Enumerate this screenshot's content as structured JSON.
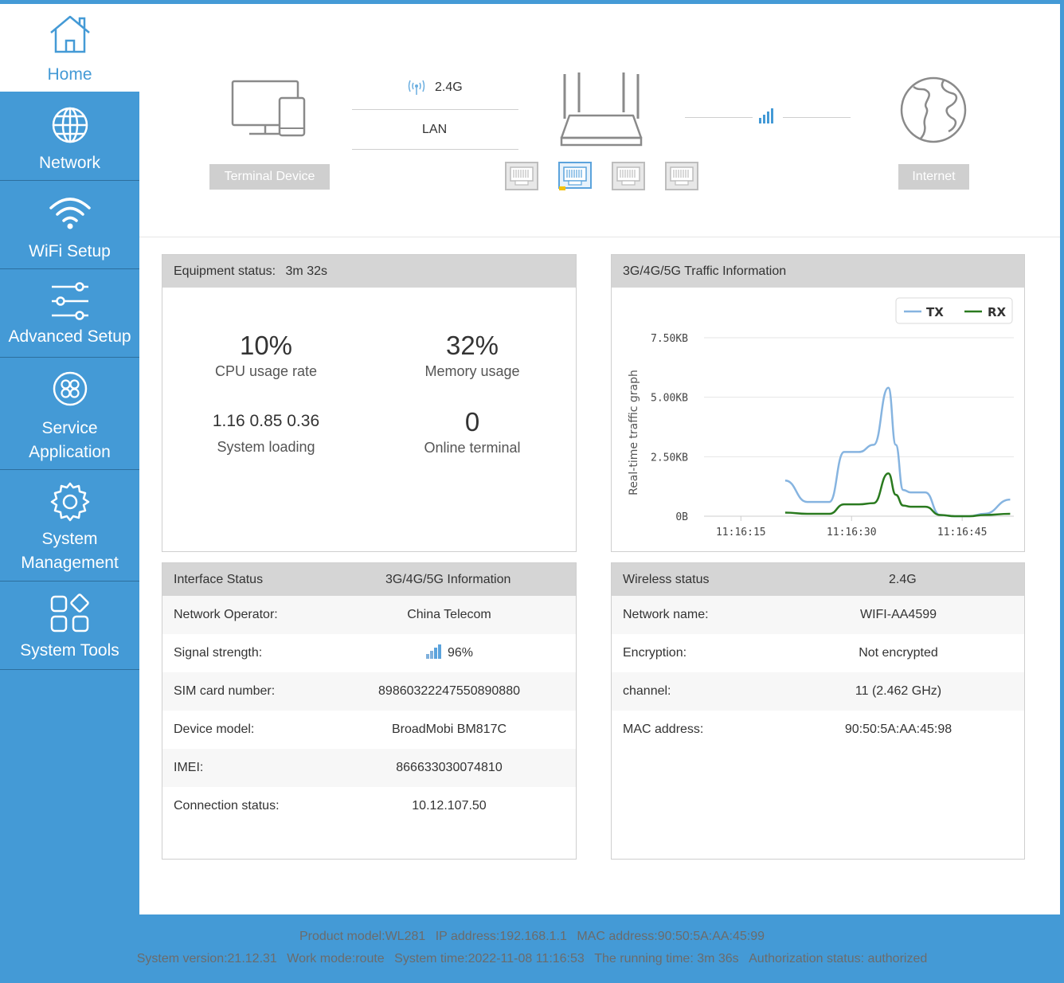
{
  "sidebar": {
    "items": [
      {
        "label": "Home",
        "icon": "home-icon",
        "active": true
      },
      {
        "label": "Network",
        "icon": "globe-icon"
      },
      {
        "label": "WiFi Setup",
        "icon": "wifi-icon"
      },
      {
        "label": "Advanced Setup",
        "icon": "sliders-icon"
      },
      {
        "label_lines": [
          "Service",
          "Application"
        ],
        "icon": "flower-icon"
      },
      {
        "label_lines": [
          "System",
          "Management"
        ],
        "icon": "gear-icon"
      },
      {
        "label": "System Tools",
        "icon": "grid-icon"
      }
    ]
  },
  "topology": {
    "terminal_label": "Terminal Device",
    "wifi_band": "2.4G",
    "lan_label": "LAN",
    "internet_label": "Internet",
    "active_lan_port": 2
  },
  "equipment": {
    "title": "Equipment status:",
    "uptime": "3m 32s",
    "cpu_value": "10%",
    "cpu_label": "CPU usage rate",
    "mem_value": "32%",
    "mem_label": "Memory usage",
    "load_value": "1.16 0.85 0.36",
    "load_label": "System loading",
    "online_value": "0",
    "online_label": "Online terminal"
  },
  "traffic": {
    "title": "3G/4G/5G Traffic Information"
  },
  "chart_data": {
    "type": "line",
    "ylabel": "Real-time traffic graph",
    "y_ticks": [
      "0B",
      "2.50KB",
      "5.00KB",
      "7.50KB"
    ],
    "ylim": [
      0,
      7.5
    ],
    "y_unit": "KB",
    "x_ticks": [
      "11:16:15",
      "11:16:30",
      "11:16:45"
    ],
    "x_tick_values": [
      15,
      30,
      45
    ],
    "xlim": [
      10,
      52
    ],
    "legend_position": "top-right",
    "series": [
      {
        "name": "TX",
        "color": "#86b4e0",
        "x": [
          21,
          24,
          27,
          29,
          31,
          33,
          35,
          36,
          37,
          38,
          40,
          42,
          44,
          46,
          48,
          51.5
        ],
        "values": [
          1.5,
          0.6,
          0.6,
          2.7,
          2.7,
          3.0,
          5.4,
          3.0,
          1.1,
          1.0,
          1.0,
          0.05,
          0.0,
          0.0,
          0.1,
          0.7
        ]
      },
      {
        "name": "RX",
        "color": "#2a7a1f",
        "x": [
          21,
          24,
          27,
          29,
          31,
          33,
          35,
          36,
          37,
          38,
          40,
          42,
          44,
          46,
          48,
          51.5
        ],
        "values": [
          0.15,
          0.1,
          0.1,
          0.5,
          0.5,
          0.55,
          1.8,
          0.9,
          0.45,
          0.4,
          0.4,
          0.05,
          0.0,
          0.0,
          0.05,
          0.1
        ]
      }
    ]
  },
  "interface": {
    "title": "Interface Status",
    "col2": "3G/4G/5G Information",
    "rows": [
      {
        "k": "Network Operator:",
        "v": "China Telecom"
      },
      {
        "k": "Signal strength:",
        "v": "96%"
      },
      {
        "k": "SIM card number:",
        "v": "89860322247550890880"
      },
      {
        "k": "Device model:",
        "v": "BroadMobi BM817C"
      },
      {
        "k": "IMEI:",
        "v": "866633030074810"
      },
      {
        "k": "Connection status:",
        "v": "10.12.107.50"
      }
    ]
  },
  "wireless": {
    "title": "Wireless status",
    "col2": "2.4G",
    "rows": [
      {
        "k": "Network name:",
        "v": "WIFI-AA4599"
      },
      {
        "k": "Encryption:",
        "v": "Not encrypted"
      },
      {
        "k": "channel:",
        "v": "11 (2.462 GHz)"
      },
      {
        "k": "MAC address:",
        "v": "90:50:5A:AA:45:98"
      }
    ]
  },
  "footer": {
    "line1": [
      "Product model:WL281",
      "IP address:192.168.1.1",
      "MAC address:90:50:5A:AA:45:99"
    ],
    "line2": [
      "System version:21.12.31",
      "Work mode:route",
      "System time:2022-11-08 11:16:53",
      "The running time: 3m 36s",
      "Authorization status: authorized"
    ]
  },
  "colors": {
    "brand": "#449ad6",
    "panel_head": "#d5d5d5",
    "tag_gray": "#cfcfcf",
    "port_active": "#f4c20d"
  }
}
